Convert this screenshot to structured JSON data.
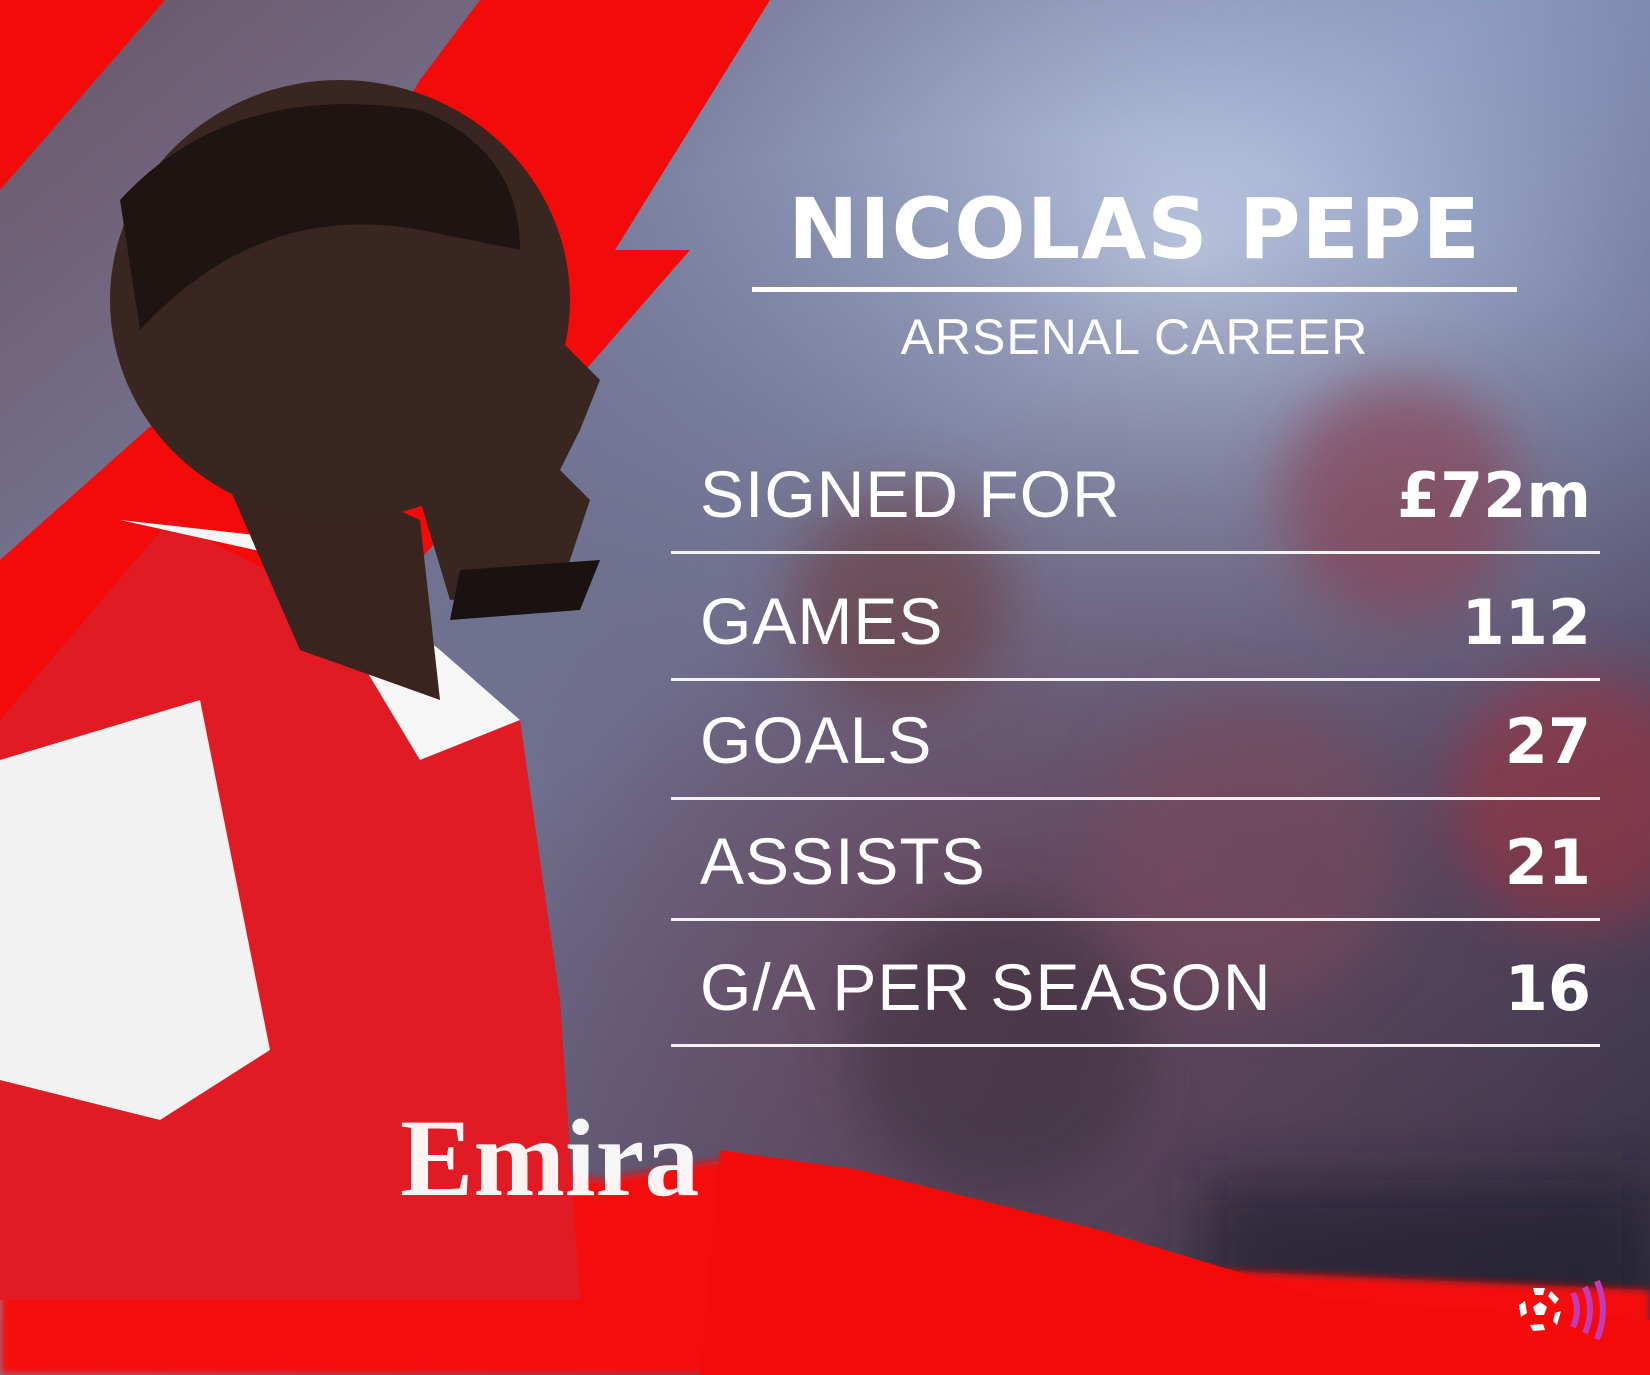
{
  "header": {
    "player_name": "NICOLAS PEPE",
    "subtitle": "ARSENAL CAREER"
  },
  "stats": [
    {
      "label": "SIGNED FOR",
      "value": "£72m"
    },
    {
      "label": "GAMES",
      "value": "112"
    },
    {
      "label": "GOALS",
      "value": "27"
    },
    {
      "label": "ASSISTS",
      "value": "21"
    },
    {
      "label": "G/A PER SEASON",
      "value": "16"
    }
  ],
  "colors": {
    "accent_red": "#f50a0a",
    "logo_magenta": "#c23bb8",
    "text": "#ffffff"
  },
  "logo": {
    "icon": "football-broadcast-icon"
  }
}
